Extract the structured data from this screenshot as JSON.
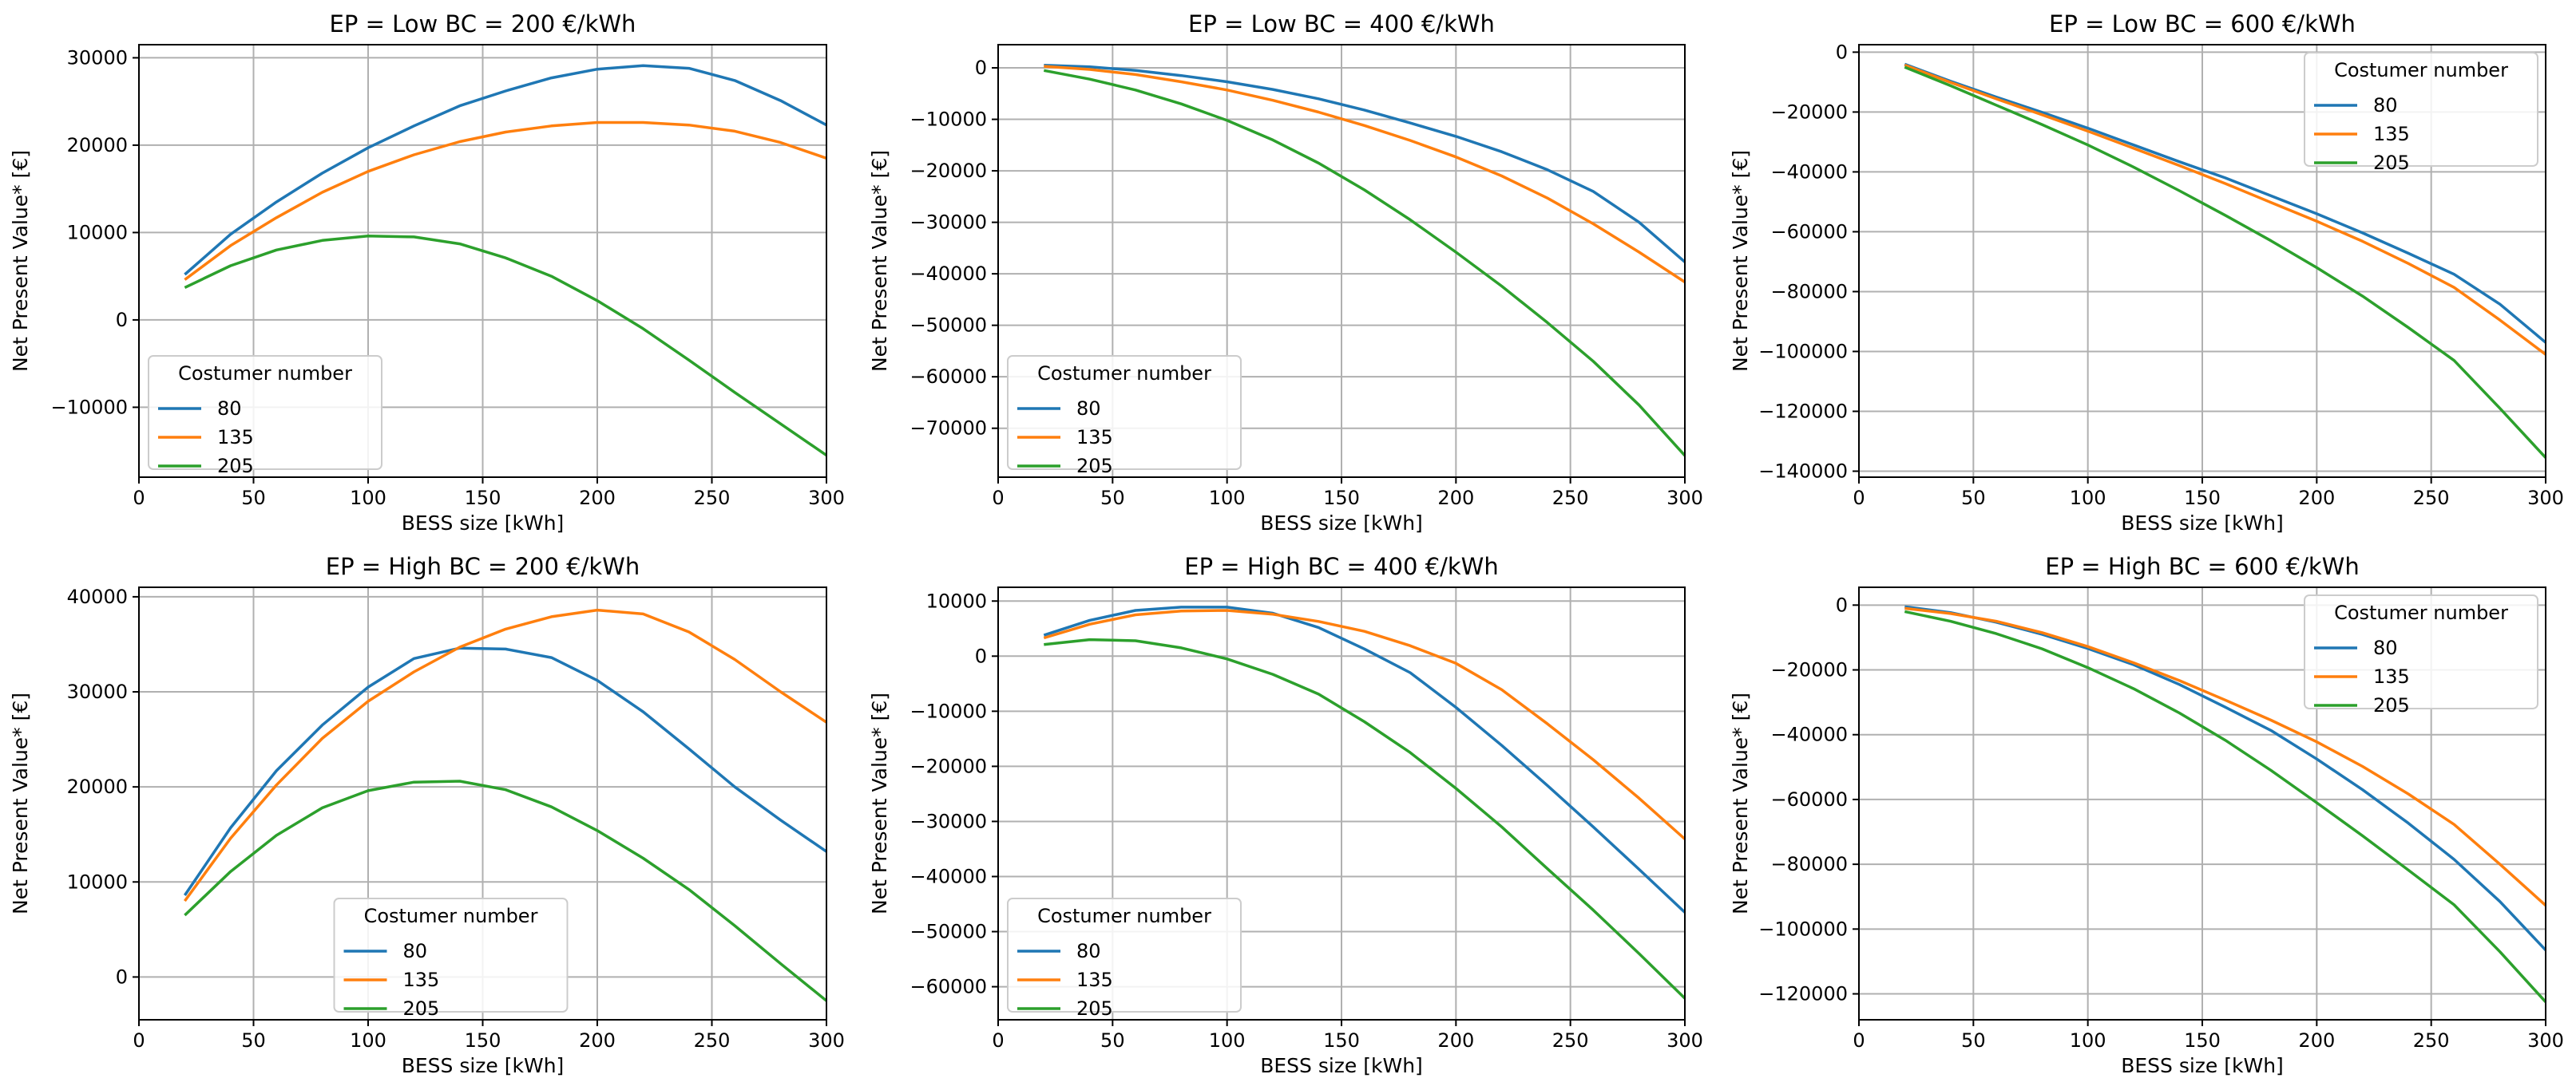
{
  "chart_data": [
    {
      "type": "line",
      "title": "EP = Low BC = 200 €/kWh",
      "xlabel": "BESS size [kWh]",
      "ylabel": "Net Present Value* [€]",
      "xlim": [
        0,
        300
      ],
      "ylim": [
        -18000,
        31500
      ],
      "xticks": [
        0,
        50,
        100,
        150,
        200,
        250,
        300
      ],
      "yticks": [
        -10000,
        0,
        10000,
        20000,
        30000
      ],
      "grid": true,
      "legend_title": "Costumer number",
      "legend_position": "lower-left",
      "x": [
        20,
        40,
        60,
        80,
        100,
        120,
        140,
        160,
        180,
        200,
        220,
        240,
        260,
        280,
        300
      ],
      "series": [
        {
          "name": "80",
          "color": "#1f77b4",
          "values": [
            5200,
            9800,
            13500,
            16800,
            19700,
            22200,
            24500,
            26200,
            27700,
            28700,
            29100,
            28800,
            27400,
            25100,
            22300
          ]
        },
        {
          "name": "135",
          "color": "#ff7f0e",
          "values": [
            4600,
            8500,
            11700,
            14600,
            17000,
            18900,
            20400,
            21500,
            22200,
            22600,
            22600,
            22300,
            21600,
            20300,
            18500
          ]
        },
        {
          "name": "205",
          "color": "#2ca02c",
          "values": [
            3700,
            6200,
            8000,
            9100,
            9600,
            9500,
            8700,
            7100,
            5000,
            2200,
            -1000,
            -4600,
            -8300,
            -11900,
            -15500
          ]
        }
      ]
    },
    {
      "type": "line",
      "title": "EP = Low BC = 400 €/kWh",
      "xlabel": "BESS size [kWh]",
      "ylabel": "Net Present Value* [€]",
      "xlim": [
        0,
        300
      ],
      "ylim": [
        -79500,
        4500
      ],
      "xticks": [
        0,
        50,
        100,
        150,
        200,
        250,
        300
      ],
      "yticks": [
        -70000,
        -60000,
        -50000,
        -40000,
        -30000,
        -20000,
        -10000,
        0
      ],
      "grid": true,
      "legend_title": "Costumer number",
      "legend_position": "lower-left",
      "x": [
        20,
        40,
        60,
        80,
        100,
        120,
        140,
        160,
        180,
        200,
        220,
        240,
        260,
        280,
        300
      ],
      "series": [
        {
          "name": "80",
          "color": "#1f77b4",
          "values": [
            500,
            200,
            -500,
            -1500,
            -2700,
            -4200,
            -6000,
            -8200,
            -10700,
            -13300,
            -16300,
            -19800,
            -24000,
            -30000,
            -37700
          ]
        },
        {
          "name": "135",
          "color": "#ff7f0e",
          "values": [
            300,
            -300,
            -1300,
            -2700,
            -4300,
            -6300,
            -8600,
            -11200,
            -14100,
            -17300,
            -21000,
            -25300,
            -30300,
            -35800,
            -41600
          ]
        },
        {
          "name": "205",
          "color": "#2ca02c",
          "values": [
            -500,
            -2200,
            -4300,
            -7000,
            -10200,
            -14000,
            -18500,
            -23700,
            -29500,
            -35800,
            -42400,
            -49500,
            -57000,
            -65500,
            -75300
          ]
        }
      ]
    },
    {
      "type": "line",
      "title": "EP = Low BC = 600 €/kWh",
      "xlabel": "BESS size [kWh]",
      "ylabel": "Net Present Value* [€]",
      "xlim": [
        0,
        300
      ],
      "ylim": [
        -142000,
        2500
      ],
      "xticks": [
        0,
        50,
        100,
        150,
        200,
        250,
        300
      ],
      "yticks": [
        -140000,
        -120000,
        -100000,
        -80000,
        -60000,
        -40000,
        -20000,
        0
      ],
      "grid": true,
      "legend_title": "Costumer number",
      "legend_position": "upper-right",
      "x": [
        20,
        40,
        60,
        80,
        100,
        120,
        140,
        160,
        180,
        200,
        220,
        240,
        260,
        280,
        300
      ],
      "series": [
        {
          "name": "80",
          "color": "#1f77b4",
          "values": [
            -4000,
            -9700,
            -15000,
            -20100,
            -25400,
            -31000,
            -36600,
            -42000,
            -48000,
            -54000,
            -60400,
            -67200,
            -74200,
            -84200,
            -97000
          ]
        },
        {
          "name": "135",
          "color": "#ff7f0e",
          "values": [
            -4300,
            -10100,
            -15600,
            -20900,
            -26400,
            -32100,
            -37900,
            -43900,
            -50200,
            -56500,
            -63200,
            -70600,
            -78600,
            -89500,
            -101000
          ]
        },
        {
          "name": "205",
          "color": "#2ca02c",
          "values": [
            -5000,
            -11200,
            -17700,
            -24200,
            -31000,
            -38400,
            -46300,
            -54500,
            -63000,
            -72000,
            -81500,
            -92000,
            -103000,
            -119000,
            -135500
          ]
        }
      ]
    },
    {
      "type": "line",
      "title": "EP = High BC = 200 €/kWh",
      "xlabel": "BESS size [kWh]",
      "ylabel": "Net Present Value* [€]",
      "xlim": [
        0,
        300
      ],
      "ylim": [
        -4500,
        41000
      ],
      "xticks": [
        0,
        50,
        100,
        150,
        200,
        250,
        300
      ],
      "yticks": [
        0,
        10000,
        20000,
        30000,
        40000
      ],
      "grid": true,
      "legend_title": "Costumer number",
      "legend_position": "lower-center",
      "x": [
        20,
        40,
        60,
        80,
        100,
        120,
        140,
        160,
        180,
        200,
        220,
        240,
        260,
        280,
        300
      ],
      "series": [
        {
          "name": "80",
          "color": "#1f77b4",
          "values": [
            8600,
            15700,
            21700,
            26500,
            30500,
            33500,
            34600,
            34500,
            33600,
            31200,
            27900,
            24000,
            20000,
            16500,
            13200
          ]
        },
        {
          "name": "135",
          "color": "#ff7f0e",
          "values": [
            8000,
            14600,
            20200,
            25100,
            29000,
            32100,
            34700,
            36600,
            37900,
            38600,
            38200,
            36300,
            33400,
            30000,
            26800
          ]
        },
        {
          "name": "205",
          "color": "#2ca02c",
          "values": [
            6500,
            11100,
            14900,
            17800,
            19600,
            20500,
            20600,
            19700,
            17900,
            15400,
            12500,
            9200,
            5400,
            1400,
            -2500
          ]
        }
      ]
    },
    {
      "type": "line",
      "title": "EP = High BC = 400 €/kWh",
      "xlabel": "BESS size [kWh]",
      "ylabel": "Net Present Value* [€]",
      "xlim": [
        0,
        300
      ],
      "ylim": [
        -66000,
        12500
      ],
      "xticks": [
        0,
        50,
        100,
        150,
        200,
        250,
        300
      ],
      "yticks": [
        -60000,
        -50000,
        -40000,
        -30000,
        -20000,
        -10000,
        0,
        10000
      ],
      "grid": true,
      "legend_title": "Costumer number",
      "legend_position": "lower-left",
      "x": [
        20,
        40,
        60,
        80,
        100,
        120,
        140,
        160,
        180,
        200,
        220,
        240,
        260,
        280,
        300
      ],
      "series": [
        {
          "name": "80",
          "color": "#1f77b4",
          "values": [
            3800,
            6500,
            8300,
            8900,
            8900,
            7800,
            5200,
            1300,
            -3000,
            -9300,
            -16200,
            -23500,
            -31000,
            -38700,
            -46500
          ]
        },
        {
          "name": "135",
          "color": "#ff7f0e",
          "values": [
            3300,
            5800,
            7500,
            8200,
            8300,
            7600,
            6300,
            4500,
            1900,
            -1300,
            -6100,
            -12300,
            -18800,
            -25800,
            -33200
          ]
        },
        {
          "name": "205",
          "color": "#2ca02c",
          "values": [
            2100,
            3000,
            2800,
            1500,
            -500,
            -3300,
            -6900,
            -11900,
            -17500,
            -24000,
            -31000,
            -38600,
            -46100,
            -54000,
            -62100
          ]
        }
      ]
    },
    {
      "type": "line",
      "title": "EP = High BC = 600 €/kWh",
      "xlabel": "BESS size [kWh]",
      "ylabel": "Net Present Value* [€]",
      "xlim": [
        0,
        300
      ],
      "ylim": [
        -128000,
        5500
      ],
      "xticks": [
        0,
        50,
        100,
        150,
        200,
        250,
        300
      ],
      "yticks": [
        -120000,
        -100000,
        -80000,
        -60000,
        -40000,
        -20000,
        0
      ],
      "grid": true,
      "legend_title": "Costumer number",
      "legend_position": "upper-right",
      "x": [
        20,
        40,
        60,
        80,
        100,
        120,
        140,
        160,
        180,
        200,
        220,
        240,
        260,
        280,
        300
      ],
      "series": [
        {
          "name": "80",
          "color": "#1f77b4",
          "values": [
            -500,
            -2300,
            -5300,
            -9000,
            -13400,
            -18400,
            -24500,
            -31500,
            -38700,
            -47500,
            -57000,
            -67300,
            -78500,
            -91500,
            -106500
          ]
        },
        {
          "name": "135",
          "color": "#ff7f0e",
          "values": [
            -1000,
            -2600,
            -5000,
            -8500,
            -12800,
            -17800,
            -23300,
            -29300,
            -35500,
            -42200,
            -49800,
            -58300,
            -67700,
            -80000,
            -92700
          ]
        },
        {
          "name": "205",
          "color": "#2ca02c",
          "values": [
            -2000,
            -5000,
            -8800,
            -13500,
            -19300,
            -25800,
            -33300,
            -41700,
            -51000,
            -61000,
            -71200,
            -81800,
            -92500,
            -107000,
            -122500
          ]
        }
      ]
    }
  ]
}
